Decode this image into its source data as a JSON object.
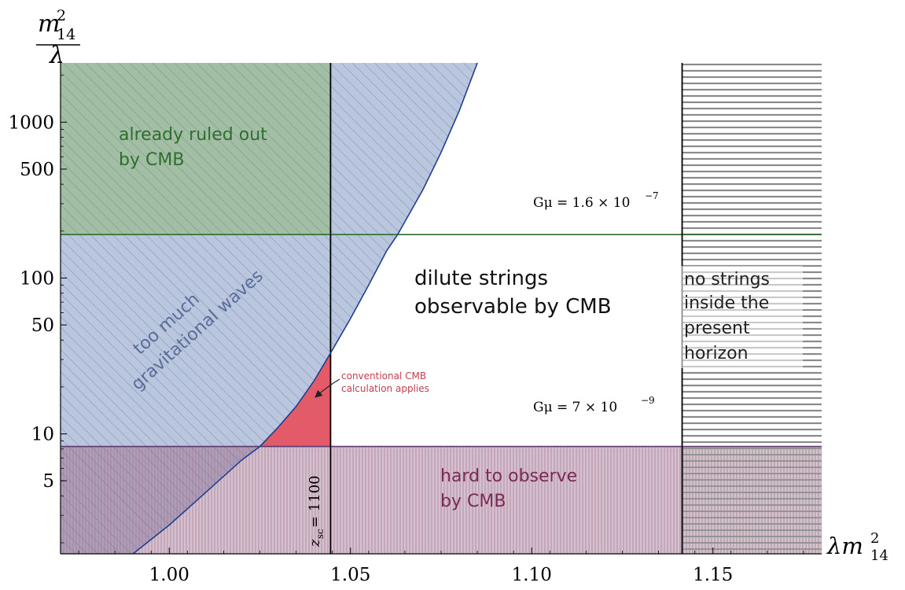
{
  "chart_data": {
    "type": "area",
    "xlabel": "λm",
    "xlabel_sup": "2",
    "xlabel_sub": "14",
    "ylabel_num": "m",
    "ylabel_sup": "2",
    "ylabel_sub": "14",
    "ylabel_den": "λ",
    "y_scale": "log",
    "xlim": [
      0.97,
      1.18
    ],
    "ylim": [
      1.7,
      2400
    ],
    "x_ticks": [
      {
        "value": 1.0,
        "label": "1.00"
      },
      {
        "value": 1.05,
        "label": "1.05"
      },
      {
        "value": 1.1,
        "label": "1.10"
      },
      {
        "value": 1.15,
        "label": "1.15"
      }
    ],
    "y_ticks": [
      {
        "value": 5,
        "label": "5"
      },
      {
        "value": 10,
        "label": "10"
      },
      {
        "value": 50,
        "label": "50"
      },
      {
        "value": 100,
        "label": "100"
      },
      {
        "value": 500,
        "label": "500"
      },
      {
        "value": 1000,
        "label": "1000"
      }
    ],
    "lines": {
      "gmu_high": {
        "y": 190,
        "label": "Gμ = 1.6 × 10",
        "exp": "−7",
        "color": "#2e6e2e"
      },
      "gmu_low": {
        "y": 8.3,
        "label": "Gμ = 7 × 10",
        "exp": "−9",
        "color": "#5a3a6e"
      },
      "zsc": {
        "x": 1.0445,
        "label": "z",
        "label_sub": "sc",
        "label_tail": " = 1100"
      },
      "horizon": {
        "x": 1.1415
      }
    },
    "gw_boundary": [
      [
        0.99,
        1.7
      ],
      [
        1.0,
        2.6
      ],
      [
        1.01,
        4.2
      ],
      [
        1.02,
        6.8
      ],
      [
        1.025,
        8.3
      ],
      [
        1.03,
        11
      ],
      [
        1.035,
        15
      ],
      [
        1.04,
        22
      ],
      [
        1.0445,
        33
      ],
      [
        1.05,
        55
      ],
      [
        1.055,
        90
      ],
      [
        1.06,
        150
      ],
      [
        1.063,
        190
      ],
      [
        1.07,
        370
      ],
      [
        1.075,
        640
      ],
      [
        1.08,
        1180
      ],
      [
        1.085,
        2400
      ]
    ],
    "regions": {
      "cmb_ruled_out": {
        "line1": "already ruled out",
        "line2": "by CMB",
        "color": "#2e6e2e"
      },
      "gw": {
        "line1": "too much",
        "line2": "gravitational waves",
        "color": "#8fa6c8"
      },
      "dilute": {
        "line1": "dilute strings",
        "line2": "observable by CMB",
        "color": "#111111"
      },
      "hard": {
        "line1": "hard to observe",
        "line2": "by CMB",
        "color": "#7a2a55"
      },
      "no_strings": {
        "lines": [
          "no strings",
          "inside the",
          "present",
          "horizon"
        ],
        "color": "#222222"
      },
      "conventional": {
        "line1": "conventional CMB",
        "line2": "calculation applies",
        "color": "#c0404f"
      }
    }
  }
}
